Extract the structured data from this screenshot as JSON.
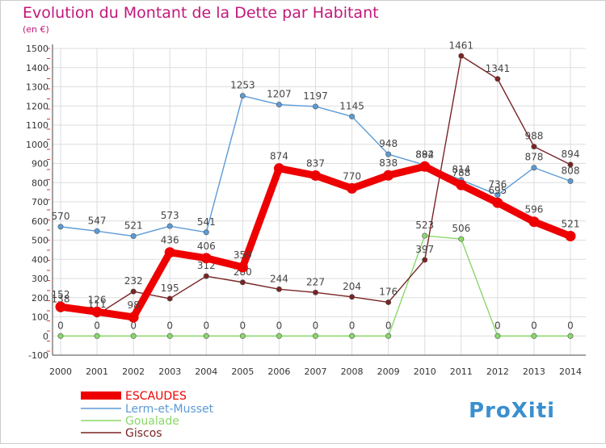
{
  "chart_data": {
    "type": "line",
    "title": "Evolution du Montant de la Dette par Habitant",
    "subtitle": "(en €)",
    "x": [
      "2000",
      "2001",
      "2002",
      "2003",
      "2004",
      "2005",
      "2006",
      "2007",
      "2008",
      "2009",
      "2010",
      "2011",
      "2012",
      "2013",
      "2014"
    ],
    "ylim": [
      -100,
      1500
    ],
    "yticks": [
      -100,
      0,
      100,
      200,
      300,
      400,
      500,
      600,
      700,
      800,
      900,
      1000,
      1100,
      1200,
      1300,
      1400,
      1500
    ],
    "grid": true,
    "legend_position": "bottom-left",
    "series": [
      {
        "name": "ESCAUDES",
        "color": "#ee0000",
        "values": [
          152,
          126,
          98,
          436,
          406,
          359,
          874,
          837,
          770,
          838,
          884,
          788,
          695,
          596,
          521
        ]
      },
      {
        "name": "Lerm-et-Musset",
        "color": "#5b9bd5",
        "values": [
          570,
          547,
          521,
          573,
          541,
          1253,
          1207,
          1197,
          1145,
          948,
          892,
          814,
          736,
          878,
          808
        ]
      },
      {
        "name": "Goualade",
        "color": "#8ad86a",
        "values": [
          0,
          0,
          0,
          0,
          0,
          0,
          0,
          0,
          0,
          0,
          523,
          506,
          0,
          0,
          0
        ]
      },
      {
        "name": "Giscos",
        "color": "#7a2424",
        "values": [
          138,
          111,
          232,
          195,
          312,
          280,
          244,
          227,
          204,
          176,
          397,
          1461,
          1341,
          988,
          894
        ]
      }
    ]
  },
  "brand": {
    "text": "ProXiti"
  }
}
